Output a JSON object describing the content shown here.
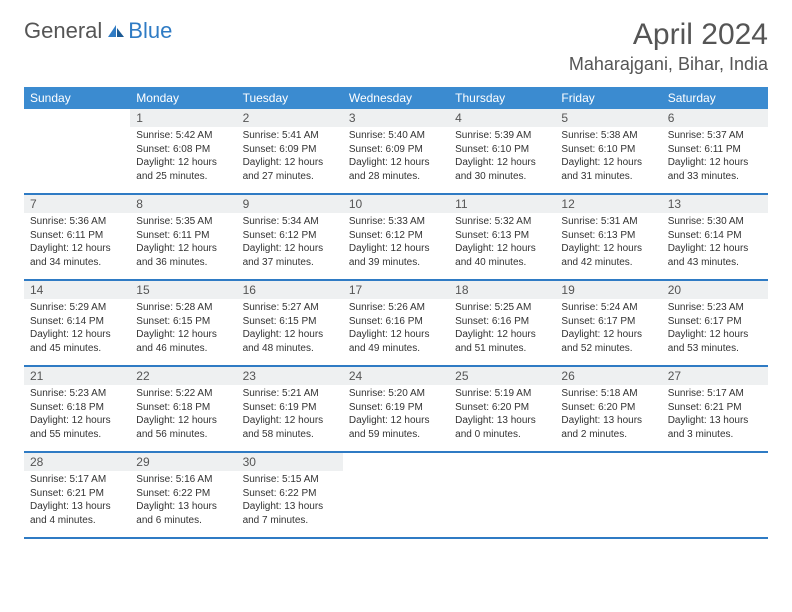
{
  "brand": {
    "part1": "General",
    "part2": "Blue"
  },
  "title": "April 2024",
  "location": "Maharajgani, Bihar, India",
  "colors": {
    "header_bg": "#3b8bd0",
    "week_border": "#2f7bc4",
    "daynum_bg": "#eef0f1",
    "text": "#333333"
  },
  "dayHeaders": [
    "Sunday",
    "Monday",
    "Tuesday",
    "Wednesday",
    "Thursday",
    "Friday",
    "Saturday"
  ],
  "weeks": [
    [
      {
        "empty": true
      },
      {
        "n": "1",
        "sr": "Sunrise: 5:42 AM",
        "ss": "Sunset: 6:08 PM",
        "d1": "Daylight: 12 hours",
        "d2": "and 25 minutes."
      },
      {
        "n": "2",
        "sr": "Sunrise: 5:41 AM",
        "ss": "Sunset: 6:09 PM",
        "d1": "Daylight: 12 hours",
        "d2": "and 27 minutes."
      },
      {
        "n": "3",
        "sr": "Sunrise: 5:40 AM",
        "ss": "Sunset: 6:09 PM",
        "d1": "Daylight: 12 hours",
        "d2": "and 28 minutes."
      },
      {
        "n": "4",
        "sr": "Sunrise: 5:39 AM",
        "ss": "Sunset: 6:10 PM",
        "d1": "Daylight: 12 hours",
        "d2": "and 30 minutes."
      },
      {
        "n": "5",
        "sr": "Sunrise: 5:38 AM",
        "ss": "Sunset: 6:10 PM",
        "d1": "Daylight: 12 hours",
        "d2": "and 31 minutes."
      },
      {
        "n": "6",
        "sr": "Sunrise: 5:37 AM",
        "ss": "Sunset: 6:11 PM",
        "d1": "Daylight: 12 hours",
        "d2": "and 33 minutes."
      }
    ],
    [
      {
        "n": "7",
        "sr": "Sunrise: 5:36 AM",
        "ss": "Sunset: 6:11 PM",
        "d1": "Daylight: 12 hours",
        "d2": "and 34 minutes."
      },
      {
        "n": "8",
        "sr": "Sunrise: 5:35 AM",
        "ss": "Sunset: 6:11 PM",
        "d1": "Daylight: 12 hours",
        "d2": "and 36 minutes."
      },
      {
        "n": "9",
        "sr": "Sunrise: 5:34 AM",
        "ss": "Sunset: 6:12 PM",
        "d1": "Daylight: 12 hours",
        "d2": "and 37 minutes."
      },
      {
        "n": "10",
        "sr": "Sunrise: 5:33 AM",
        "ss": "Sunset: 6:12 PM",
        "d1": "Daylight: 12 hours",
        "d2": "and 39 minutes."
      },
      {
        "n": "11",
        "sr": "Sunrise: 5:32 AM",
        "ss": "Sunset: 6:13 PM",
        "d1": "Daylight: 12 hours",
        "d2": "and 40 minutes."
      },
      {
        "n": "12",
        "sr": "Sunrise: 5:31 AM",
        "ss": "Sunset: 6:13 PM",
        "d1": "Daylight: 12 hours",
        "d2": "and 42 minutes."
      },
      {
        "n": "13",
        "sr": "Sunrise: 5:30 AM",
        "ss": "Sunset: 6:14 PM",
        "d1": "Daylight: 12 hours",
        "d2": "and 43 minutes."
      }
    ],
    [
      {
        "n": "14",
        "sr": "Sunrise: 5:29 AM",
        "ss": "Sunset: 6:14 PM",
        "d1": "Daylight: 12 hours",
        "d2": "and 45 minutes."
      },
      {
        "n": "15",
        "sr": "Sunrise: 5:28 AM",
        "ss": "Sunset: 6:15 PM",
        "d1": "Daylight: 12 hours",
        "d2": "and 46 minutes."
      },
      {
        "n": "16",
        "sr": "Sunrise: 5:27 AM",
        "ss": "Sunset: 6:15 PM",
        "d1": "Daylight: 12 hours",
        "d2": "and 48 minutes."
      },
      {
        "n": "17",
        "sr": "Sunrise: 5:26 AM",
        "ss": "Sunset: 6:16 PM",
        "d1": "Daylight: 12 hours",
        "d2": "and 49 minutes."
      },
      {
        "n": "18",
        "sr": "Sunrise: 5:25 AM",
        "ss": "Sunset: 6:16 PM",
        "d1": "Daylight: 12 hours",
        "d2": "and 51 minutes."
      },
      {
        "n": "19",
        "sr": "Sunrise: 5:24 AM",
        "ss": "Sunset: 6:17 PM",
        "d1": "Daylight: 12 hours",
        "d2": "and 52 minutes."
      },
      {
        "n": "20",
        "sr": "Sunrise: 5:23 AM",
        "ss": "Sunset: 6:17 PM",
        "d1": "Daylight: 12 hours",
        "d2": "and 53 minutes."
      }
    ],
    [
      {
        "n": "21",
        "sr": "Sunrise: 5:23 AM",
        "ss": "Sunset: 6:18 PM",
        "d1": "Daylight: 12 hours",
        "d2": "and 55 minutes."
      },
      {
        "n": "22",
        "sr": "Sunrise: 5:22 AM",
        "ss": "Sunset: 6:18 PM",
        "d1": "Daylight: 12 hours",
        "d2": "and 56 minutes."
      },
      {
        "n": "23",
        "sr": "Sunrise: 5:21 AM",
        "ss": "Sunset: 6:19 PM",
        "d1": "Daylight: 12 hours",
        "d2": "and 58 minutes."
      },
      {
        "n": "24",
        "sr": "Sunrise: 5:20 AM",
        "ss": "Sunset: 6:19 PM",
        "d1": "Daylight: 12 hours",
        "d2": "and 59 minutes."
      },
      {
        "n": "25",
        "sr": "Sunrise: 5:19 AM",
        "ss": "Sunset: 6:20 PM",
        "d1": "Daylight: 13 hours",
        "d2": "and 0 minutes."
      },
      {
        "n": "26",
        "sr": "Sunrise: 5:18 AM",
        "ss": "Sunset: 6:20 PM",
        "d1": "Daylight: 13 hours",
        "d2": "and 2 minutes."
      },
      {
        "n": "27",
        "sr": "Sunrise: 5:17 AM",
        "ss": "Sunset: 6:21 PM",
        "d1": "Daylight: 13 hours",
        "d2": "and 3 minutes."
      }
    ],
    [
      {
        "n": "28",
        "sr": "Sunrise: 5:17 AM",
        "ss": "Sunset: 6:21 PM",
        "d1": "Daylight: 13 hours",
        "d2": "and 4 minutes."
      },
      {
        "n": "29",
        "sr": "Sunrise: 5:16 AM",
        "ss": "Sunset: 6:22 PM",
        "d1": "Daylight: 13 hours",
        "d2": "and 6 minutes."
      },
      {
        "n": "30",
        "sr": "Sunrise: 5:15 AM",
        "ss": "Sunset: 6:22 PM",
        "d1": "Daylight: 13 hours",
        "d2": "and 7 minutes."
      },
      {
        "empty": true
      },
      {
        "empty": true
      },
      {
        "empty": true
      },
      {
        "empty": true
      }
    ]
  ]
}
